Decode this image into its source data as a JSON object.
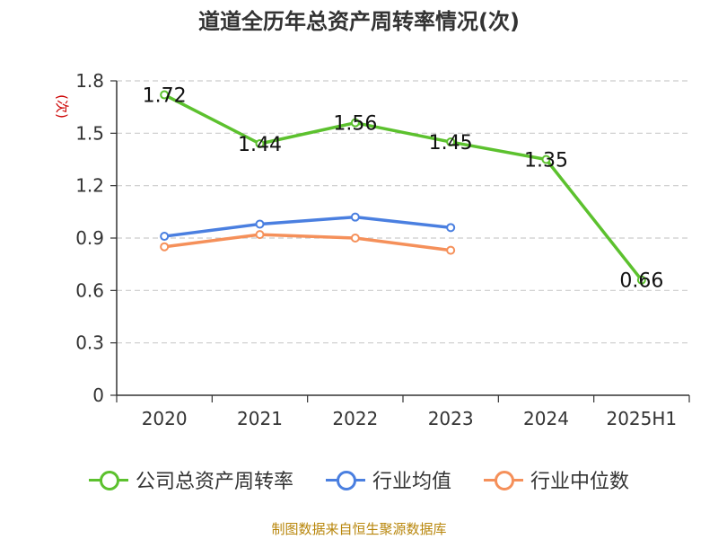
{
  "chart_data": {
    "type": "line",
    "title": "道道全历年总资产周转率情况(次)",
    "ylabel": "(次)",
    "categories": [
      "2020",
      "2021",
      "2022",
      "2023",
      "2024",
      "2025H1"
    ],
    "yticks": [
      "0",
      "0.3",
      "0.6",
      "0.9",
      "1.2",
      "1.5",
      "1.8"
    ],
    "ylim": [
      0,
      1.8
    ],
    "grid": true,
    "legend_position": "bottom",
    "series": [
      {
        "name": "公司总资产周转率",
        "color": "#5cc12e",
        "values": [
          1.72,
          1.44,
          1.56,
          1.45,
          1.35,
          0.66
        ],
        "labels": [
          "1.72",
          "1.44",
          "1.56",
          "1.45",
          "1.35",
          "0.66"
        ]
      },
      {
        "name": "行业均值",
        "color": "#4a7fe0",
        "values": [
          0.91,
          0.98,
          1.02,
          0.96,
          null,
          null
        ]
      },
      {
        "name": "行业中位数",
        "color": "#f5905a",
        "values": [
          0.85,
          0.92,
          0.9,
          0.83,
          null,
          null
        ]
      }
    ]
  },
  "source_text": "制图数据来自恒生聚源数据库"
}
